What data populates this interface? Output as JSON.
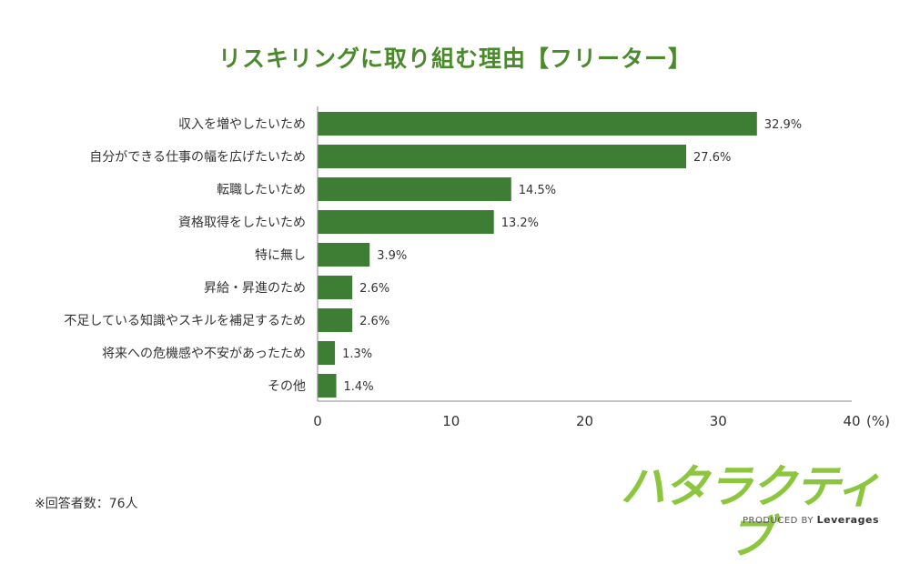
{
  "chart_data": {
    "type": "bar",
    "orientation": "horizontal",
    "title": "リスキリングに取り組む理由【フリーター】",
    "categories": [
      "収入を増やしたいため",
      "自分ができる仕事の幅を広げたいため",
      "転職したいため",
      "資格取得をしたいため",
      "特に無し",
      "昇給・昇進のため",
      "不足している知識やスキルを補足するため",
      "将来への危機感や不安があったため",
      "その他"
    ],
    "values": [
      32.9,
      27.6,
      14.5,
      13.2,
      3.9,
      2.6,
      2.6,
      1.3,
      1.4
    ],
    "value_labels": [
      "32.9%",
      "27.6%",
      "14.5%",
      "13.2%",
      "3.9%",
      "2.6%",
      "2.6%",
      "1.3%",
      "1.4%"
    ],
    "xlim": [
      0,
      40
    ],
    "xticks": [
      "0",
      "10",
      "20",
      "30",
      "40"
    ],
    "xunit": "(%)",
    "grid": false,
    "bar_color": "#3d7d34"
  },
  "note": "※回答者数：76人",
  "logo": {
    "name": "ハタラクティブ",
    "produced_by": "PRODUCED BY",
    "brand": "Leverages",
    "color": "#8cc63f"
  }
}
